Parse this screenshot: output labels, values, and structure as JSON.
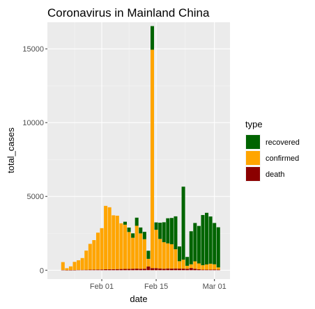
{
  "chart_data": {
    "type": "bar",
    "stacked": true,
    "title": "Coronavirus in  Mainland China",
    "xlabel": "date",
    "ylabel": "total_cases",
    "ylim": [
      -600,
      16800
    ],
    "yticks": [
      0,
      5000,
      10000,
      15000
    ],
    "ytick_labels": [
      "0",
      "5000",
      "10000",
      "15000"
    ],
    "xlim": [
      "2020-01-18",
      "2020-03-05"
    ],
    "xtick_dates": [
      "2020-02-01",
      "2020-02-15",
      "2020-03-01"
    ],
    "xtick_labels": [
      "Feb 01",
      "Feb 15",
      "Mar 01"
    ],
    "grid": true,
    "legend_title": "type",
    "legend_position": "right",
    "dates": [
      "2020-01-22",
      "2020-01-23",
      "2020-01-24",
      "2020-01-25",
      "2020-01-26",
      "2020-01-27",
      "2020-01-28",
      "2020-01-29",
      "2020-01-30",
      "2020-01-31",
      "2020-02-01",
      "2020-02-02",
      "2020-02-03",
      "2020-02-04",
      "2020-02-05",
      "2020-02-06",
      "2020-02-07",
      "2020-02-08",
      "2020-02-09",
      "2020-02-10",
      "2020-02-11",
      "2020-02-12",
      "2020-02-13",
      "2020-02-14",
      "2020-02-15",
      "2020-02-16",
      "2020-02-17",
      "2020-02-18",
      "2020-02-19",
      "2020-02-20",
      "2020-02-21",
      "2020-02-22",
      "2020-02-23",
      "2020-02-24",
      "2020-02-25",
      "2020-02-26",
      "2020-02-27",
      "2020-02-28",
      "2020-02-29",
      "2020-03-01",
      "2020-03-02"
    ],
    "series": [
      {
        "name": "death",
        "color": "#8b0000",
        "values": [
          20,
          5,
          10,
          15,
          25,
          25,
          30,
          35,
          40,
          45,
          50,
          60,
          65,
          70,
          75,
          80,
          85,
          90,
          100,
          110,
          95,
          100,
          250,
          140,
          140,
          120,
          100,
          120,
          110,
          120,
          110,
          110,
          100,
          150,
          100,
          60,
          40,
          40,
          40,
          50,
          40
        ]
      },
      {
        "name": "confirmed",
        "color": "#ffa500",
        "values": [
          530,
          130,
          250,
          550,
          650,
          800,
          1300,
          1750,
          2000,
          2500,
          2800,
          4300,
          4200,
          3650,
          3620,
          3100,
          3000,
          2500,
          2100,
          2900,
          2400,
          2000,
          520,
          14800,
          2600,
          2000,
          1800,
          1700,
          1650,
          1300,
          500,
          600,
          200,
          250,
          500,
          400,
          300,
          350,
          400,
          350,
          150
        ]
      },
      {
        "name": "recovered",
        "color": "#006400",
        "values": [
          0,
          0,
          0,
          0,
          0,
          0,
          0,
          0,
          0,
          0,
          0,
          0,
          0,
          0,
          0,
          0,
          200,
          300,
          300,
          550,
          400,
          500,
          550,
          1600,
          500,
          1100,
          1350,
          1700,
          1780,
          2230,
          1000,
          4950,
          600,
          2240,
          2600,
          2540,
          3400,
          3500,
          3200,
          2800,
          2720
        ]
      }
    ]
  }
}
